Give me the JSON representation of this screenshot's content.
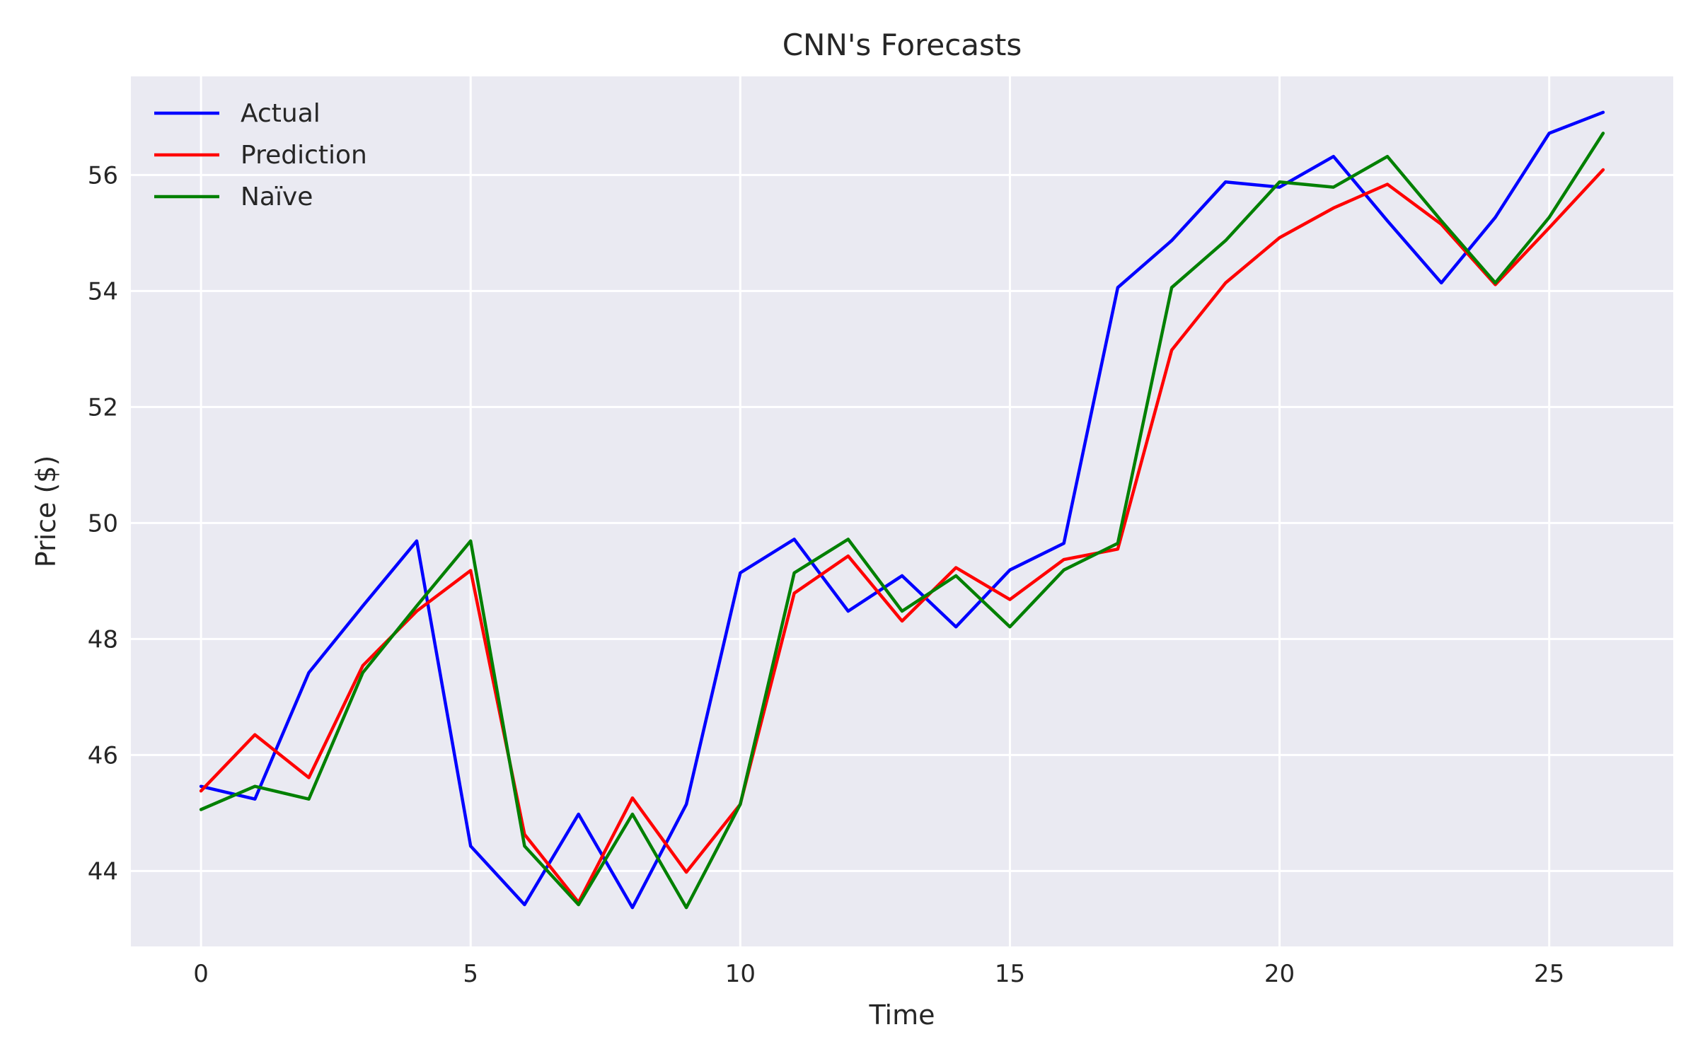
{
  "chart_data": {
    "type": "line",
    "title": "CNN's Forecasts",
    "xlabel": "Time",
    "ylabel": "Price ($)",
    "xlim": [
      -1.3,
      27.3
    ],
    "ylim": [
      42.7,
      57.7
    ],
    "grid": true,
    "legend_position": "top-left",
    "x": [
      0,
      1,
      2,
      3,
      4,
      5,
      6,
      7,
      8,
      9,
      10,
      11,
      12,
      13,
      14,
      15,
      16,
      17,
      18,
      19,
      20,
      21,
      22,
      23,
      24,
      25,
      26
    ],
    "xticks": [
      0,
      5,
      10,
      15,
      20,
      25
    ],
    "xtick_labels": [
      "0",
      "5",
      "10",
      "15",
      "20",
      "25"
    ],
    "yticks": [
      44,
      46,
      48,
      50,
      52,
      54,
      56
    ],
    "ytick_labels": [
      "44",
      "46",
      "48",
      "50",
      "52",
      "54",
      "56"
    ],
    "series": [
      {
        "name": "Actual",
        "color": "#0000ff",
        "values": [
          45.46,
          45.24,
          47.42,
          48.57,
          49.69,
          44.43,
          43.42,
          44.98,
          43.37,
          45.15,
          49.14,
          49.72,
          48.48,
          49.09,
          48.21,
          49.19,
          49.65,
          54.06,
          54.87,
          55.88,
          55.79,
          56.32,
          55.21,
          54.14,
          55.27,
          56.72,
          57.08
        ]
      },
      {
        "name": "Prediction",
        "color": "#ff0000",
        "values": [
          45.38,
          46.35,
          45.61,
          47.54,
          48.48,
          49.18,
          44.63,
          43.46,
          45.26,
          43.98,
          45.15,
          48.79,
          49.43,
          48.31,
          49.23,
          48.68,
          49.37,
          49.55,
          52.98,
          54.14,
          54.92,
          55.43,
          55.84,
          55.15,
          54.11,
          55.09,
          56.09
        ]
      },
      {
        "name": "Naïve",
        "color": "#008000",
        "values": [
          45.06,
          45.46,
          45.24,
          47.42,
          48.57,
          49.69,
          44.43,
          43.42,
          44.98,
          43.37,
          45.15,
          49.14,
          49.72,
          48.48,
          49.09,
          48.21,
          49.19,
          49.65,
          54.06,
          54.87,
          55.88,
          55.79,
          56.32,
          55.21,
          54.14,
          55.27,
          56.72
        ]
      }
    ],
    "colors": {
      "plot_background": "#eaeaf2",
      "gridline": "#ffffff",
      "text": "#262626"
    }
  }
}
